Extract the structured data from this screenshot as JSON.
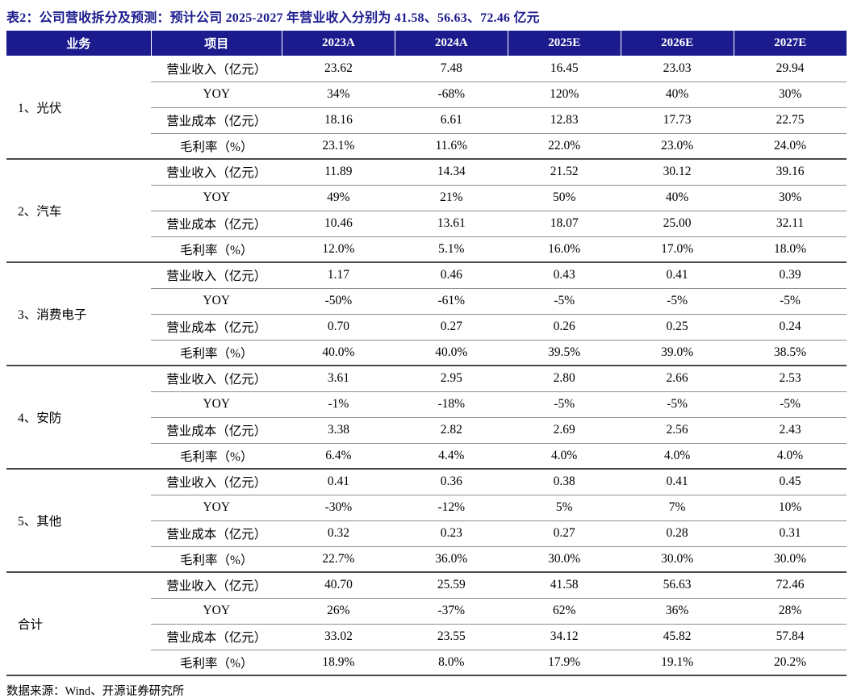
{
  "title": "表2：公司营收拆分及预测：预计公司 2025-2027 年营业收入分别为 41.58、56.63、72.46 亿元",
  "source_note": "数据来源：Wind、开源证券研究所",
  "colors": {
    "header_bg": "#1b1b8e",
    "header_text": "#ffffff",
    "title_text": "#1b1b8e",
    "section_border": "#4a4a4a",
    "row_border": "#8f8f8f",
    "body_text": "#000000"
  },
  "table": {
    "headers": [
      "业务",
      "项目",
      "2023A",
      "2024A",
      "2025E",
      "2026E",
      "2027E"
    ],
    "metric_labels": [
      "营业收入（亿元）",
      "YOY",
      "营业成本（亿元）",
      "毛利率（%）"
    ],
    "sections": [
      {
        "business": "1、光伏",
        "rows": [
          [
            "23.62",
            "7.48",
            "16.45",
            "23.03",
            "29.94"
          ],
          [
            "34%",
            "-68%",
            "120%",
            "40%",
            "30%"
          ],
          [
            "18.16",
            "6.61",
            "12.83",
            "17.73",
            "22.75"
          ],
          [
            "23.1%",
            "11.6%",
            "22.0%",
            "23.0%",
            "24.0%"
          ]
        ]
      },
      {
        "business": "2、汽车",
        "rows": [
          [
            "11.89",
            "14.34",
            "21.52",
            "30.12",
            "39.16"
          ],
          [
            "49%",
            "21%",
            "50%",
            "40%",
            "30%"
          ],
          [
            "10.46",
            "13.61",
            "18.07",
            "25.00",
            "32.11"
          ],
          [
            "12.0%",
            "5.1%",
            "16.0%",
            "17.0%",
            "18.0%"
          ]
        ]
      },
      {
        "business": "3、消费电子",
        "rows": [
          [
            "1.17",
            "0.46",
            "0.43",
            "0.41",
            "0.39"
          ],
          [
            "-50%",
            "-61%",
            "-5%",
            "-5%",
            "-5%"
          ],
          [
            "0.70",
            "0.27",
            "0.26",
            "0.25",
            "0.24"
          ],
          [
            "40.0%",
            "40.0%",
            "39.5%",
            "39.0%",
            "38.5%"
          ]
        ]
      },
      {
        "business": "4、安防",
        "rows": [
          [
            "3.61",
            "2.95",
            "2.80",
            "2.66",
            "2.53"
          ],
          [
            "-1%",
            "-18%",
            "-5%",
            "-5%",
            "-5%"
          ],
          [
            "3.38",
            "2.82",
            "2.69",
            "2.56",
            "2.43"
          ],
          [
            "6.4%",
            "4.4%",
            "4.0%",
            "4.0%",
            "4.0%"
          ]
        ]
      },
      {
        "business": "5、其他",
        "rows": [
          [
            "0.41",
            "0.36",
            "0.38",
            "0.41",
            "0.45"
          ],
          [
            "-30%",
            "-12%",
            "5%",
            "7%",
            "10%"
          ],
          [
            "0.32",
            "0.23",
            "0.27",
            "0.28",
            "0.31"
          ],
          [
            "22.7%",
            "36.0%",
            "30.0%",
            "30.0%",
            "30.0%"
          ]
        ]
      },
      {
        "business": "合计",
        "rows": [
          [
            "40.70",
            "25.59",
            "41.58",
            "56.63",
            "72.46"
          ],
          [
            "26%",
            "-37%",
            "62%",
            "36%",
            "28%"
          ],
          [
            "33.02",
            "23.55",
            "34.12",
            "45.82",
            "57.84"
          ],
          [
            "18.9%",
            "8.0%",
            "17.9%",
            "19.1%",
            "20.2%"
          ]
        ]
      }
    ]
  }
}
